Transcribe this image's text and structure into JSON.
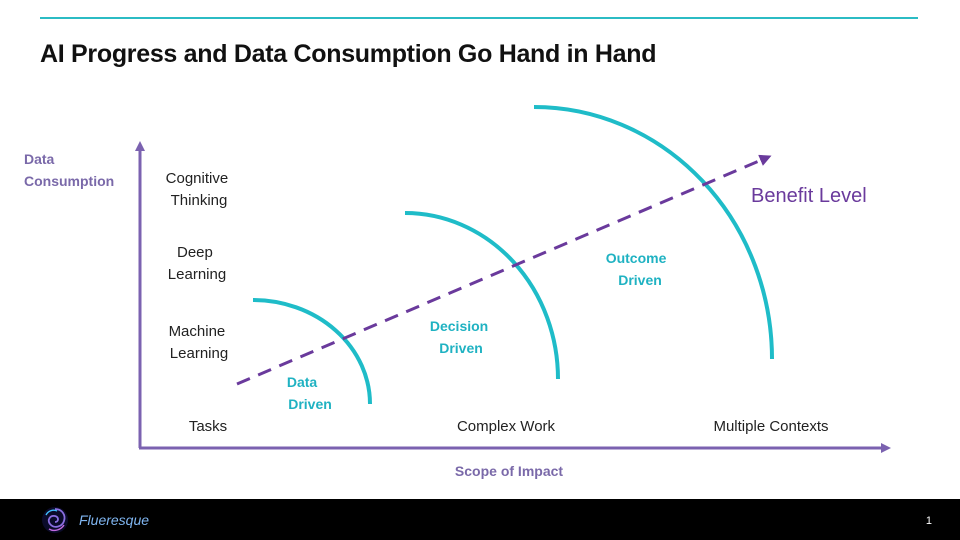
{
  "slide": {
    "title": "AI Progress and Data Consumption Go Hand in Hand",
    "page_number": "1"
  },
  "footer": {
    "brand": "Flueresque",
    "logo_icon": "swirl-logo-icon"
  },
  "axes": {
    "y_label_line1": "Data",
    "y_label_line2": "Consumption",
    "x_label": "Scope of Impact"
  },
  "y_levels": [
    {
      "line1": "Machine",
      "line2": "Learning"
    },
    {
      "line1": "Deep",
      "line2": "Learning"
    },
    {
      "line1": "Cognitive",
      "line2": "Thinking"
    }
  ],
  "x_levels": [
    "Tasks",
    "Complex Work",
    "Multiple Contexts"
  ],
  "stages": [
    {
      "line1": "Data",
      "line2": "Driven"
    },
    {
      "line1": "Decision",
      "line2": "Driven"
    },
    {
      "line1": "Outcome",
      "line2": "Driven"
    }
  ],
  "trend": {
    "label": "Benefit Level"
  },
  "colors": {
    "axis": "#7b62b0",
    "arc": "#1fbcc8",
    "trend": "#6a3a9c",
    "stage_text": "#1fb2c2",
    "axis_label": "#7a69a9"
  }
}
